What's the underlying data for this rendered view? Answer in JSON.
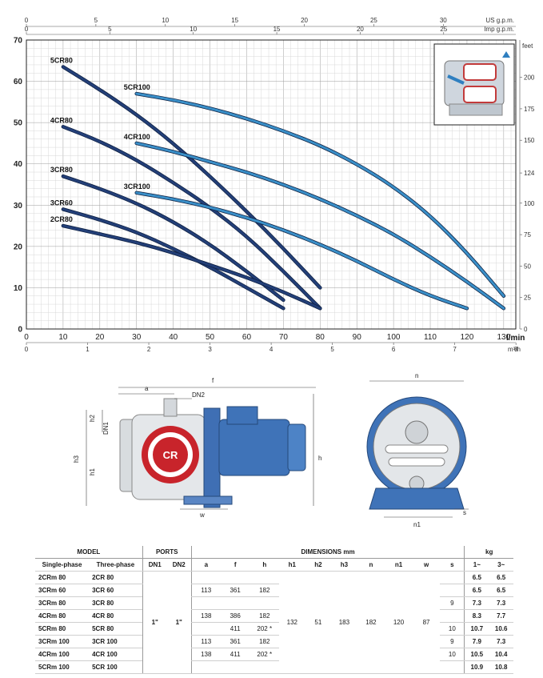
{
  "chart_data": {
    "type": "line",
    "x_label": "l/min",
    "x_lim": [
      0,
      130
    ],
    "x_ticks": [
      0,
      10,
      20,
      30,
      40,
      50,
      60,
      70,
      80,
      90,
      100,
      110,
      120,
      130
    ],
    "y_lim": [
      0,
      70
    ],
    "y_ticks": [
      0,
      10,
      20,
      30,
      40,
      50,
      60,
      70
    ],
    "secondary_axes": {
      "us_gpm": {
        "label": "US g.p.m.",
        "ticks": [
          0,
          5,
          10,
          15,
          20,
          25,
          30
        ]
      },
      "imp_gpm": {
        "label": "Imp g.p.m.",
        "ticks": [
          0,
          5,
          10,
          15,
          20,
          25
        ]
      },
      "m3h": {
        "label": "m³/h",
        "ticks": [
          0,
          1,
          2,
          3,
          4,
          5,
          6,
          7,
          8
        ]
      },
      "feet": {
        "label": "feet",
        "ticks": [
          0,
          25,
          50,
          75,
          100,
          124,
          150,
          175,
          200
        ]
      }
    },
    "grid": true,
    "series": [
      {
        "name": "5CR80",
        "color": "#233f78",
        "x": [
          10,
          20,
          30,
          40,
          50,
          60,
          70,
          80
        ],
        "y": [
          63.5,
          58,
          52,
          45,
          37,
          28.5,
          19.5,
          10
        ]
      },
      {
        "name": "4CR80",
        "color": "#233f78",
        "x": [
          10,
          20,
          30,
          40,
          50,
          60,
          70,
          80
        ],
        "y": [
          49,
          45.5,
          41,
          35.5,
          29.5,
          22.5,
          14,
          5
        ]
      },
      {
        "name": "3CR80",
        "color": "#233f78",
        "x": [
          10,
          20,
          30,
          40,
          50,
          60,
          70
        ],
        "y": [
          37,
          34,
          30.5,
          26,
          20.5,
          14,
          7
        ]
      },
      {
        "name": "3CR60",
        "color": "#233f78",
        "x": [
          10,
          20,
          30,
          40,
          50,
          60,
          70
        ],
        "y": [
          29,
          26.5,
          23.5,
          19.5,
          15,
          10,
          5
        ]
      },
      {
        "name": "2CR80",
        "color": "#233f78",
        "x": [
          10,
          20,
          30,
          40,
          50,
          60,
          70,
          80
        ],
        "y": [
          25,
          23,
          21,
          18.5,
          15.5,
          12.5,
          9,
          5
        ]
      },
      {
        "name": "5CR100",
        "color": "#3a8fc8",
        "x": [
          30,
          40,
          50,
          60,
          70,
          80,
          90,
          100,
          110,
          120,
          130
        ],
        "y": [
          57,
          55.5,
          53.5,
          51,
          48,
          44.5,
          40,
          34.5,
          27.5,
          18.5,
          8
        ]
      },
      {
        "name": "4CR100",
        "color": "#3a8fc8",
        "x": [
          30,
          40,
          50,
          60,
          70,
          80,
          90,
          100,
          110,
          120,
          130
        ],
        "y": [
          45,
          43,
          40.5,
          38,
          35,
          31.5,
          27.5,
          23,
          17.5,
          11.5,
          5
        ]
      },
      {
        "name": "3CR100",
        "color": "#3a8fc8",
        "x": [
          30,
          40,
          50,
          60,
          70,
          80,
          90,
          100,
          110,
          120
        ],
        "y": [
          33,
          31.5,
          29.5,
          27,
          24,
          20.5,
          16.5,
          12,
          8,
          5
        ]
      }
    ]
  },
  "diagram": {
    "dimension_labels": {
      "f": "f",
      "a": "a",
      "dn2": "DN2",
      "dn1": "DN1",
      "h2": "h2",
      "h3": "h3",
      "h1": "h1",
      "h": "h",
      "w": "w",
      "n": "n",
      "n1": "n1",
      "s": "s"
    },
    "logo_text": "CR"
  },
  "table": {
    "headers": {
      "model": "MODEL",
      "single": "Single-phase",
      "three": "Three-phase",
      "ports": "PORTS",
      "dn1": "DN1",
      "dn2": "DN2",
      "dimensions": "DIMENSIONS mm",
      "a": "a",
      "f": "f",
      "h": "h",
      "h1": "h1",
      "h2": "h2",
      "h3": "h3",
      "n": "n",
      "n1": "n1",
      "w": "w",
      "s": "s",
      "kg": "kg",
      "kg1": "1~",
      "kg3": "3~"
    },
    "shared": {
      "dn1": "1\"",
      "dn2": "1\"",
      "h1": "132",
      "h2": "51",
      "h3": "183",
      "n": "182",
      "n1": "120",
      "w": "87"
    },
    "rows": [
      {
        "single": "2CRm 80",
        "three": "2CR 80",
        "a": "",
        "f": "",
        "h": "",
        "s": "",
        "kg1": "6.5",
        "kg3": "6.5"
      },
      {
        "single": "3CRm 60",
        "three": "3CR 60",
        "a": "113",
        "f": "361",
        "h": "182",
        "s": "",
        "kg1": "6.5",
        "kg3": "6.5"
      },
      {
        "single": "3CRm 80",
        "three": "3CR 80",
        "a": "",
        "f": "",
        "h": "",
        "s": "9",
        "kg1": "7.3",
        "kg3": "7.3"
      },
      {
        "single": "4CRm 80",
        "three": "4CR 80",
        "a": "138",
        "f": "386",
        "h": "182",
        "s": "",
        "kg1": "8.3",
        "kg3": "7.7"
      },
      {
        "single": "5CRm 80",
        "three": "5CR 80",
        "a": "",
        "f": "411",
        "h": "202 *",
        "s": "10",
        "kg1": "10.7",
        "kg3": "10.6"
      },
      {
        "single": "3CRm 100",
        "three": "3CR 100",
        "a": "113",
        "f": "361",
        "h": "182",
        "s": "9",
        "kg1": "7.9",
        "kg3": "7.3"
      },
      {
        "single": "4CRm 100",
        "three": "4CR 100",
        "a": "138",
        "f": "411",
        "h": "202 *",
        "s": "10",
        "kg1": "10.5",
        "kg3": "10.4"
      },
      {
        "single": "5CRm 100",
        "three": "5CR 100",
        "a": "",
        "f": "",
        "h": "",
        "s": "",
        "kg1": "10.9",
        "kg3": "10.8"
      }
    ]
  }
}
